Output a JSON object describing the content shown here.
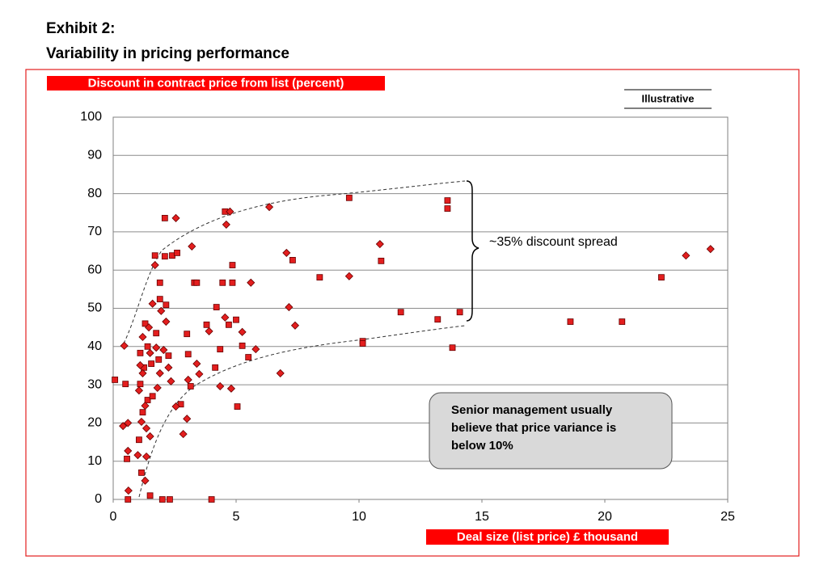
{
  "chart_data": {
    "type": "scatter",
    "title_lines": [
      "Exhibit 2:",
      "Variability in pricing performance"
    ],
    "y_label": "Discount in contract price from list (percent)",
    "x_label": "Deal size (list price) £ thousand",
    "tag": "Illustrative",
    "annotation": "~35% discount spread",
    "callout_lines": [
      "Senior management usually",
      "believe that price variance is",
      "below 10%"
    ],
    "xlim": [
      0,
      25
    ],
    "xticks": [
      0,
      5,
      10,
      15,
      20,
      25
    ],
    "ylim": [
      0,
      100
    ],
    "yticks": [
      0,
      10,
      20,
      30,
      40,
      50,
      60,
      70,
      80,
      90,
      100
    ],
    "grid": true,
    "series": [
      {
        "marker": "square",
        "color": "#e31e1e",
        "x": [
          0.07,
          0.5,
          0.56,
          0.6,
          1.05,
          1.1,
          1.1,
          1.15,
          1.2,
          1.25,
          1.3,
          1.4,
          1.4,
          1.5,
          1.55,
          1.6,
          1.7,
          1.75,
          1.85,
          1.9,
          1.9,
          2.0,
          2.1,
          2.1,
          2.15,
          2.25,
          2.3,
          2.4,
          2.6,
          2.75,
          3.0,
          3.05,
          3.15,
          3.3,
          3.4,
          3.8,
          4.0,
          4.15,
          4.2,
          4.35,
          4.45,
          4.55,
          4.7,
          4.85,
          4.85,
          5.0,
          5.05,
          5.25,
          5.5,
          7.3,
          8.4,
          9.6,
          10.15,
          10.15,
          10.9,
          11.7,
          13.2,
          13.6,
          13.6,
          13.8,
          14.1,
          18.6,
          20.7,
          22.3
        ],
        "values": [
          31.3,
          30.2,
          10.6,
          0,
          15.6,
          30.2,
          38.3,
          7,
          22.8,
          34.5,
          46,
          40,
          26,
          1,
          35.5,
          27,
          63.8,
          43.5,
          36.6,
          56.7,
          52.4,
          0,
          73.6,
          63.6,
          50.9,
          37.6,
          0,
          63.8,
          64.5,
          24.9,
          43.3,
          38,
          29.6,
          56.7,
          56.7,
          45.7,
          0,
          34.5,
          50.3,
          39.3,
          56.7,
          75.3,
          45.7,
          61.3,
          56.7,
          47,
          24.3,
          40.2,
          37.2,
          62.6,
          58.1,
          78.9,
          41.4,
          40.8,
          62.4,
          49,
          47.1,
          78.2,
          76.1,
          39.7,
          49,
          46.5,
          46.5,
          58.1
        ]
      },
      {
        "marker": "diamond",
        "color": "#e31e1e",
        "x": [
          0.45,
          0.4,
          0.6,
          0.6,
          0.62,
          1.0,
          1.05,
          1.1,
          1.15,
          1.2,
          1.2,
          1.3,
          1.3,
          1.35,
          1.35,
          1.45,
          1.5,
          1.5,
          1.6,
          1.7,
          1.75,
          1.8,
          1.9,
          1.95,
          2.05,
          2.15,
          2.25,
          2.35,
          2.55,
          2.55,
          2.85,
          3.0,
          3.05,
          3.2,
          3.4,
          3.5,
          3.9,
          4.35,
          4.55,
          4.6,
          4.75,
          4.8,
          5.25,
          5.6,
          5.8,
          6.35,
          6.8,
          7.05,
          7.15,
          7.4,
          9.6,
          10.85,
          23.3,
          24.3
        ],
        "values": [
          40.2,
          19.2,
          20,
          12.7,
          2.3,
          11.6,
          28.5,
          35.1,
          20.3,
          33,
          42.5,
          24.5,
          4.9,
          11.2,
          18.6,
          45,
          16.5,
          38.3,
          51.2,
          61.3,
          39.7,
          29.2,
          33,
          49.3,
          39.1,
          46.5,
          34.5,
          30.9,
          73.6,
          24.3,
          17.1,
          21.1,
          31.3,
          66.2,
          35.5,
          32.8,
          44,
          29.6,
          47.6,
          71.9,
          75.3,
          29,
          43.8,
          56.7,
          39.3,
          76.5,
          33,
          64.5,
          50.3,
          45.5,
          58.4,
          66.8,
          63.8,
          65.5
        ]
      }
    ]
  }
}
